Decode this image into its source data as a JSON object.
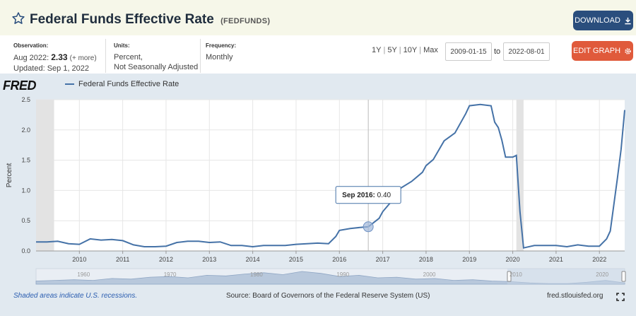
{
  "header": {
    "title": "Federal Funds Effective Rate",
    "series_id": "(FEDFUNDS)",
    "download_label": "DOWNLOAD"
  },
  "info": {
    "observation_label": "Observation:",
    "observation_date": "Aug 2022:",
    "observation_value": "2.33",
    "observation_more": "(+ more)",
    "updated": "Updated: Sep 1, 2022",
    "units_label": "Units:",
    "units_line1": "Percent,",
    "units_line2": "Not Seasonally Adjusted",
    "frequency_label": "Frequency:",
    "frequency_value": "Monthly"
  },
  "controls": {
    "ranges": [
      "1Y",
      "5Y",
      "10Y",
      "Max"
    ],
    "start_date": "2009-01-15",
    "to_label": "to",
    "end_date": "2022-08-01",
    "edit_label": "EDIT GRAPH"
  },
  "brand": {
    "logo_text": "FRED"
  },
  "tooltip": {
    "date": "Sep 2016:",
    "value": "0.40"
  },
  "footer": {
    "recession_note": "Shaded areas indicate U.S. recessions.",
    "source": "Source: Board of Governors of the Federal Reserve System (US)",
    "url": "fred.stlouisfed.org"
  },
  "colors": {
    "line": "#4572a7",
    "recession": "#e3e3e3",
    "download": "#2a4e7d",
    "edit": "#e05a3b",
    "chart_bg": "#e1e9f0"
  },
  "chart_data": {
    "type": "line",
    "title": "",
    "xlabel": "",
    "ylabel": "Percent",
    "xlim": [
      "2009-01",
      "2022-08"
    ],
    "ylim": [
      0,
      2.5
    ],
    "yticks": [
      "0.0",
      "0.5",
      "1.0",
      "1.5",
      "2.0",
      "2.5"
    ],
    "xticks": [
      "2010",
      "2011",
      "2012",
      "2013",
      "2014",
      "2015",
      "2016",
      "2017",
      "2018",
      "2019",
      "2020",
      "2021",
      "2022"
    ],
    "navigator_ticks": [
      "1960",
      "1970",
      "1980",
      "1990",
      "2000",
      "2010",
      "2020"
    ],
    "grid": true,
    "legend": "top-left",
    "recessions": [
      [
        "2009-01",
        "2009-06"
      ],
      [
        "2020-02",
        "2020-04"
      ]
    ],
    "series": [
      {
        "name": "Federal Funds Effective Rate",
        "x": [
          "2009-01",
          "2009-04",
          "2009-07",
          "2009-10",
          "2010-01",
          "2010-04",
          "2010-07",
          "2010-10",
          "2011-01",
          "2011-04",
          "2011-07",
          "2011-10",
          "2012-01",
          "2012-04",
          "2012-07",
          "2012-10",
          "2013-01",
          "2013-04",
          "2013-07",
          "2013-10",
          "2014-01",
          "2014-04",
          "2014-07",
          "2014-10",
          "2015-01",
          "2015-04",
          "2015-07",
          "2015-10",
          "2015-12",
          "2016-01",
          "2016-04",
          "2016-07",
          "2016-09",
          "2016-12",
          "2017-01",
          "2017-03",
          "2017-06",
          "2017-09",
          "2017-12",
          "2018-01",
          "2018-03",
          "2018-06",
          "2018-09",
          "2018-12",
          "2019-01",
          "2019-04",
          "2019-07",
          "2019-08",
          "2019-09",
          "2019-10",
          "2019-11",
          "2019-12",
          "2020-01",
          "2020-02",
          "2020-03",
          "2020-04",
          "2020-07",
          "2020-10",
          "2021-01",
          "2021-04",
          "2021-07",
          "2021-10",
          "2022-01",
          "2022-03",
          "2022-04",
          "2022-05",
          "2022-06",
          "2022-07",
          "2022-08"
        ],
        "y": [
          0.15,
          0.15,
          0.16,
          0.12,
          0.11,
          0.2,
          0.18,
          0.19,
          0.17,
          0.1,
          0.07,
          0.07,
          0.08,
          0.14,
          0.16,
          0.16,
          0.14,
          0.15,
          0.09,
          0.09,
          0.07,
          0.09,
          0.09,
          0.09,
          0.11,
          0.12,
          0.13,
          0.12,
          0.24,
          0.34,
          0.37,
          0.39,
          0.4,
          0.54,
          0.65,
          0.79,
          1.04,
          1.15,
          1.3,
          1.41,
          1.51,
          1.82,
          1.95,
          2.27,
          2.4,
          2.42,
          2.4,
          2.13,
          2.04,
          1.83,
          1.55,
          1.55,
          1.55,
          1.58,
          0.65,
          0.05,
          0.09,
          0.09,
          0.09,
          0.07,
          0.1,
          0.08,
          0.08,
          0.2,
          0.33,
          0.77,
          1.21,
          1.68,
          2.33
        ]
      }
    ]
  }
}
